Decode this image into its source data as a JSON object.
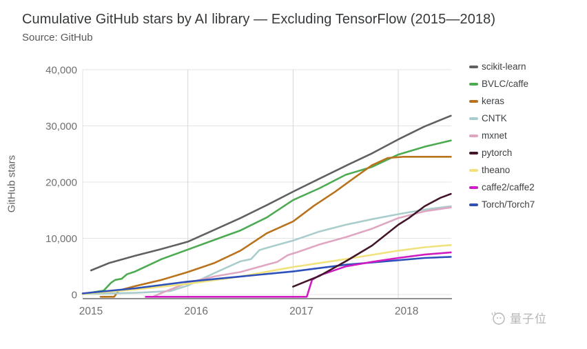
{
  "header": {
    "title": "Cumulative GitHub stars by AI library — Excluding TensorFlow (2015—2018)",
    "subtitle": "Source: GitHub"
  },
  "watermark": {
    "text": "量子位"
  },
  "chart_data": {
    "type": "line",
    "title": "Cumulative GitHub stars by AI library — Excluding TensorFlow (2015—2018)",
    "xlabel": "",
    "ylabel": "GitHub stars",
    "xlim": [
      2015,
      2018.5
    ],
    "ylim": [
      -1000,
      40000
    ],
    "grid": true,
    "legend_position": "right",
    "x_ticks": [
      {
        "t": 2015,
        "label": "2015"
      },
      {
        "t": 2016,
        "label": "2016"
      },
      {
        "t": 2017,
        "label": "2017"
      },
      {
        "t": 2018,
        "label": "2018"
      }
    ],
    "y_ticks": [
      {
        "v": 0,
        "label": "0"
      },
      {
        "v": 10000,
        "label": "10,000"
      },
      {
        "v": 20000,
        "label": "20,000"
      },
      {
        "v": 30000,
        "label": "30,000"
      },
      {
        "v": 40000,
        "label": "40,000"
      }
    ],
    "series": [
      {
        "name": "scikit-learn",
        "color": "#5f6062",
        "points": [
          [
            2015.08,
            4300
          ],
          [
            2015.25,
            5600
          ],
          [
            2015.5,
            6900
          ],
          [
            2015.75,
            8100
          ],
          [
            2016,
            9400
          ],
          [
            2016.25,
            11500
          ],
          [
            2016.5,
            13600
          ],
          [
            2016.75,
            15900
          ],
          [
            2017,
            18300
          ],
          [
            2017.25,
            20600
          ],
          [
            2017.5,
            22900
          ],
          [
            2017.75,
            25100
          ],
          [
            2018,
            27600
          ],
          [
            2018.25,
            29900
          ],
          [
            2018.5,
            31800
          ]
        ]
      },
      {
        "name": "BVLC/caffe",
        "color": "#4cab51",
        "points": [
          [
            2015,
            100
          ],
          [
            2015.2,
            700
          ],
          [
            2015.27,
            2100
          ],
          [
            2015.31,
            2600
          ],
          [
            2015.37,
            2800
          ],
          [
            2015.42,
            3600
          ],
          [
            2015.5,
            4100
          ],
          [
            2015.75,
            6300
          ],
          [
            2016,
            8000
          ],
          [
            2016.25,
            9700
          ],
          [
            2016.5,
            11400
          ],
          [
            2016.75,
            13700
          ],
          [
            2017,
            16800
          ],
          [
            2017.25,
            18900
          ],
          [
            2017.5,
            21300
          ],
          [
            2017.75,
            22700
          ],
          [
            2018,
            24900
          ],
          [
            2018.25,
            26300
          ],
          [
            2018.5,
            27400
          ]
        ]
      },
      {
        "name": "keras",
        "color": "#b8731c",
        "points": [
          [
            2015.17,
            -400
          ],
          [
            2015.3,
            -400
          ],
          [
            2015.34,
            700
          ],
          [
            2015.5,
            1500
          ],
          [
            2015.75,
            2600
          ],
          [
            2016,
            4000
          ],
          [
            2016.25,
            5600
          ],
          [
            2016.5,
            7800
          ],
          [
            2016.75,
            10900
          ],
          [
            2017,
            13000
          ],
          [
            2017.2,
            15800
          ],
          [
            2017.4,
            18300
          ],
          [
            2017.6,
            21000
          ],
          [
            2017.75,
            23000
          ],
          [
            2017.9,
            24300
          ],
          [
            2018.05,
            24500
          ],
          [
            2018.5,
            24500
          ]
        ]
      },
      {
        "name": "CNTK",
        "color": "#a9cdcc",
        "points": [
          [
            2015,
            100
          ],
          [
            2015.5,
            300
          ],
          [
            2015.83,
            600
          ],
          [
            2016,
            1600
          ],
          [
            2016.25,
            3800
          ],
          [
            2016.5,
            5900
          ],
          [
            2016.6,
            6300
          ],
          [
            2016.68,
            7900
          ],
          [
            2016.75,
            8300
          ],
          [
            2017,
            9600
          ],
          [
            2017.25,
            11200
          ],
          [
            2017.5,
            12400
          ],
          [
            2017.75,
            13400
          ],
          [
            2018,
            14300
          ],
          [
            2018.25,
            15100
          ],
          [
            2018.5,
            15700
          ]
        ]
      },
      {
        "name": "mxnet",
        "color": "#dfa6c2",
        "points": [
          [
            2015.68,
            -300
          ],
          [
            2015.78,
            500
          ],
          [
            2016,
            2100
          ],
          [
            2016.25,
            3200
          ],
          [
            2016.5,
            4000
          ],
          [
            2016.75,
            5300
          ],
          [
            2016.85,
            5800
          ],
          [
            2016.95,
            7000
          ],
          [
            2017.05,
            7600
          ],
          [
            2017.25,
            8900
          ],
          [
            2017.5,
            10200
          ],
          [
            2017.75,
            11700
          ],
          [
            2018,
            13600
          ],
          [
            2018.25,
            14800
          ],
          [
            2018.5,
            15500
          ]
        ]
      },
      {
        "name": "pytorch",
        "color": "#43152b",
        "points": [
          [
            2017,
            1400
          ],
          [
            2017.25,
            3300
          ],
          [
            2017.5,
            5900
          ],
          [
            2017.75,
            8700
          ],
          [
            2018,
            12400
          ],
          [
            2018.1,
            13600
          ],
          [
            2018.25,
            15700
          ],
          [
            2018.4,
            17200
          ],
          [
            2018.5,
            17900
          ]
        ]
      },
      {
        "name": "theano",
        "color": "#f0e27c",
        "points": [
          [
            2015,
            100
          ],
          [
            2015.5,
            900
          ],
          [
            2016,
            1900
          ],
          [
            2016.5,
            3200
          ],
          [
            2017,
            4900
          ],
          [
            2017.5,
            6300
          ],
          [
            2018,
            7800
          ],
          [
            2018.25,
            8400
          ],
          [
            2018.5,
            8800
          ]
        ]
      },
      {
        "name": "caffe2/caffe2",
        "color": "#d01ac2",
        "points": [
          [
            2015.6,
            -400
          ],
          [
            2017.13,
            -400
          ],
          [
            2017.18,
            2600
          ],
          [
            2017.25,
            3400
          ],
          [
            2017.5,
            5000
          ],
          [
            2017.75,
            5800
          ],
          [
            2018,
            6500
          ],
          [
            2018.25,
            7100
          ],
          [
            2018.5,
            7500
          ]
        ]
      },
      {
        "name": "Torch/Torch7",
        "color": "#2d50bb",
        "points": [
          [
            2015,
            200
          ],
          [
            2015.5,
            1100
          ],
          [
            2016,
            2300
          ],
          [
            2016.5,
            3200
          ],
          [
            2017,
            4100
          ],
          [
            2017.5,
            5300
          ],
          [
            2018,
            6100
          ],
          [
            2018.25,
            6500
          ],
          [
            2018.5,
            6700
          ]
        ]
      }
    ],
    "plot_style": {
      "h_grid_color": "#e4e4e4",
      "v_grid_color": "#d6d6d6",
      "left_border_color": "#e0e0e0",
      "axis_color": "#8f8f8f",
      "tick_label_color": "#6f6f6f"
    }
  }
}
